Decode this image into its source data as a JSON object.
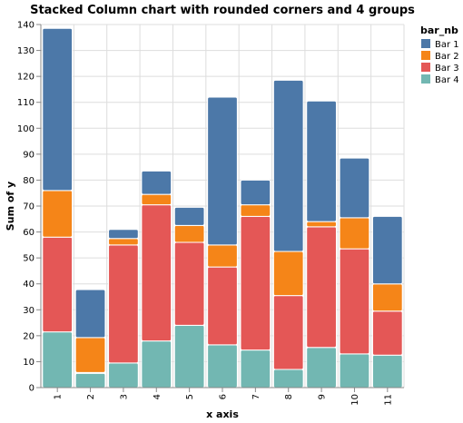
{
  "chart_data": {
    "type": "bar",
    "stacked": true,
    "title": "Stacked Column chart with rounded corners and 4 groups",
    "xlabel": "x axis",
    "ylabel": "Sum of y",
    "categories": [
      "1",
      "2",
      "3",
      "4",
      "5",
      "6",
      "7",
      "8",
      "9",
      "10",
      "11"
    ],
    "ylim": [
      0,
      140
    ],
    "yticks": [
      0,
      10,
      20,
      30,
      40,
      50,
      60,
      70,
      80,
      90,
      100,
      110,
      120,
      130,
      140
    ],
    "grid": true,
    "legend": {
      "title": "bar_nb",
      "placement": "top-right"
    },
    "series": [
      {
        "name": "Bar 4",
        "color": "#72b7b2",
        "values": [
          21.5,
          5.5,
          9.5,
          18,
          24,
          16.5,
          14.5,
          7,
          15.5,
          13,
          12.5
        ]
      },
      {
        "name": "Bar 3",
        "color": "#e45756",
        "values": [
          36.5,
          0.3,
          45.5,
          52.5,
          32,
          30,
          51.5,
          28.5,
          46.5,
          40.5,
          17
        ]
      },
      {
        "name": "Bar 2",
        "color": "#f58518",
        "values": [
          18,
          13.5,
          2.5,
          4,
          6.5,
          8.5,
          4.5,
          17,
          2,
          12,
          10.5
        ]
      },
      {
        "name": "Bar 1",
        "color": "#4c78a8",
        "values": [
          62.5,
          18.5,
          3.5,
          9,
          7,
          57,
          9.5,
          66,
          46.5,
          23,
          26
        ]
      }
    ]
  }
}
